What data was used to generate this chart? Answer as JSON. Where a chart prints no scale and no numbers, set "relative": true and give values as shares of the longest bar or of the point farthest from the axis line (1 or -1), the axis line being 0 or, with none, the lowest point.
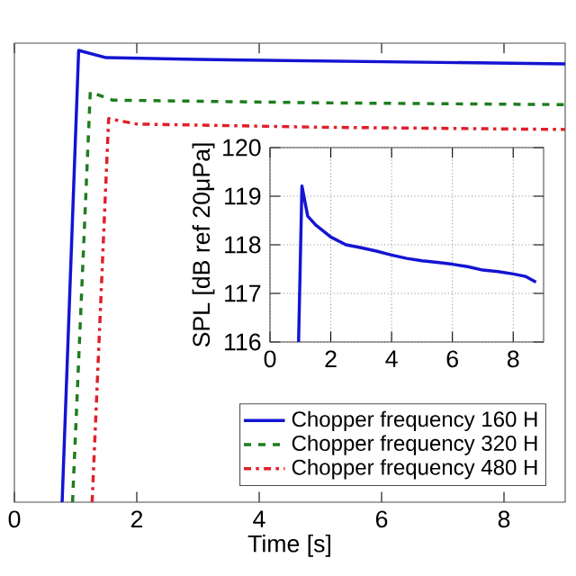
{
  "chart_data": [
    {
      "type": "line",
      "relative": true,
      "xlabel": "Time [s]",
      "xlim": [
        0,
        9
      ],
      "xticks": [
        0,
        2,
        4,
        6,
        8
      ],
      "tick_labels": "x",
      "legend": "bottom right",
      "series": [
        {
          "name": "Chopper frequency 160 H",
          "color": "#1414d2",
          "line_style": "solid",
          "x": [
            0.78,
            1.05,
            1.5,
            3,
            6,
            9
          ],
          "values": [
            0,
            1,
            0.984,
            0.98,
            0.975,
            0.97
          ]
        },
        {
          "name": "Chopper frequency 320 H",
          "color": "#1e7d1e",
          "line_style": "dashed",
          "x": [
            0.95,
            1.24,
            1.6,
            5,
            9
          ],
          "values": [
            0,
            0.908,
            0.89,
            0.884,
            0.88
          ]
        },
        {
          "name": "Chopper frequency 480 H",
          "color": "#e0202a",
          "line_style": "dashdot",
          "x": [
            1.27,
            1.54,
            2,
            5,
            9
          ],
          "values": [
            0,
            0.849,
            0.837,
            0.83,
            0.825
          ]
        }
      ]
    },
    {
      "type": "line",
      "ylabel": "SPL [dB ref 20μPa]",
      "xlim": [
        0,
        9
      ],
      "xticks": [
        0,
        2,
        4,
        6,
        8
      ],
      "ylim": [
        116,
        120
      ],
      "yticks": [
        116,
        117,
        118,
        119,
        120
      ],
      "grid": true,
      "series": [
        {
          "color": "#1414d2",
          "line_style": "solid",
          "x": [
            0.94,
            1.05,
            1.24,
            1.5,
            2.0,
            2.5,
            3.0,
            3.5,
            4.0,
            4.5,
            5.0,
            5.5,
            6.0,
            6.5,
            7.0,
            7.5,
            8.0,
            8.4,
            8.75
          ],
          "values": [
            116,
            119.21,
            118.59,
            118.41,
            118.16,
            118.0,
            117.94,
            117.87,
            117.79,
            117.72,
            117.67,
            117.64,
            117.6,
            117.55,
            117.48,
            117.45,
            117.4,
            117.35,
            117.23
          ]
        }
      ]
    }
  ]
}
